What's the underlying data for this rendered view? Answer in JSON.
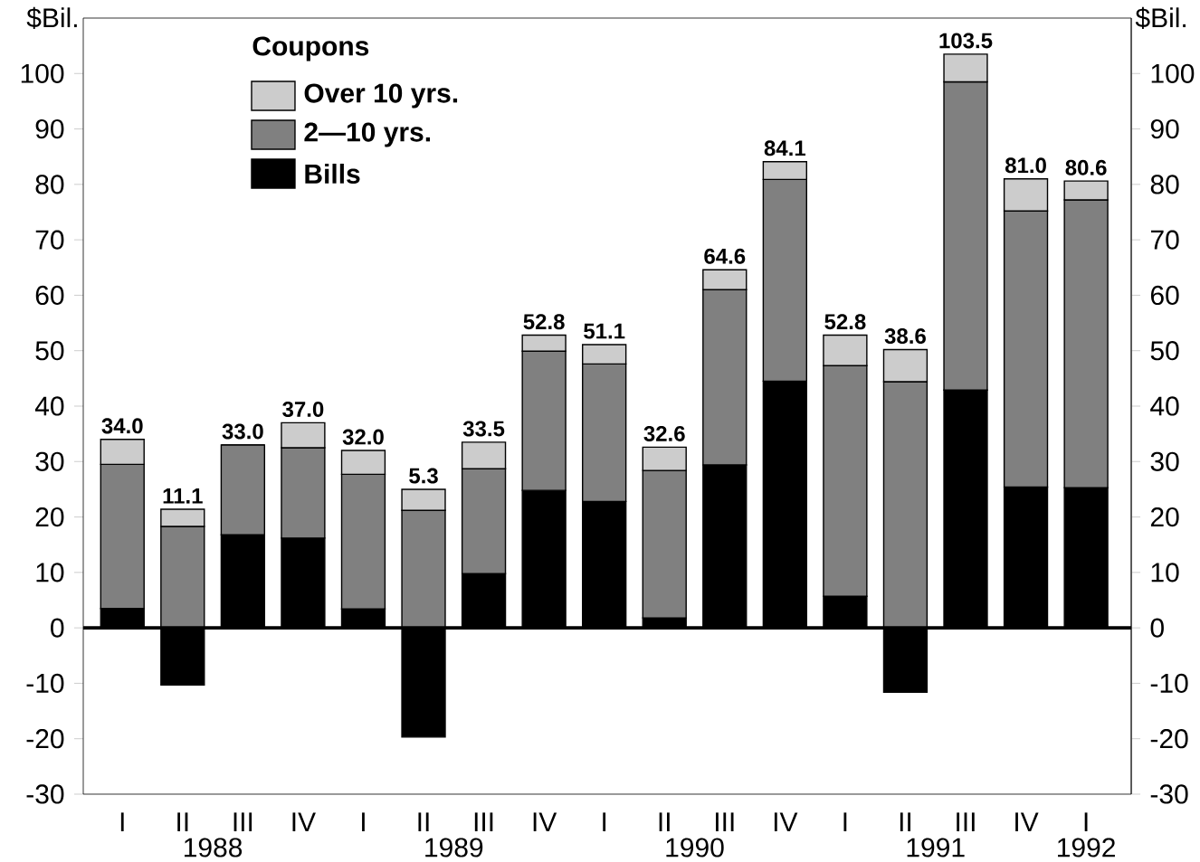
{
  "chart_data": {
    "type": "bar",
    "stacked": true,
    "ylabel": "$Bil.",
    "y2label": "$Bil.",
    "legend_title": "Coupons",
    "legend": "top left",
    "categories": [
      "I",
      "II",
      "III",
      "IV",
      "I",
      "II",
      "III",
      "IV",
      "I",
      "II",
      "III",
      "IV",
      "I",
      "II",
      "III",
      "IV",
      "I"
    ],
    "series": [
      {
        "name": "Bills",
        "color": "#000000",
        "values": [
          3.5,
          -10.3,
          16.8,
          16.2,
          3.4,
          -19.7,
          9.8,
          24.8,
          22.8,
          1.8,
          29.4,
          44.5,
          5.7,
          -11.6,
          42.9,
          25.4,
          25.3
        ]
      },
      {
        "name": "2—10 yrs.",
        "color": "#808080",
        "values": [
          26.0,
          18.3,
          16.2,
          16.3,
          24.3,
          21.2,
          18.9,
          25.1,
          24.8,
          26.6,
          31.6,
          36.4,
          41.6,
          44.4,
          55.6,
          49.8,
          51.9
        ]
      },
      {
        "name": "Over 10 yrs.",
        "color": "#cccccc",
        "values": [
          4.5,
          3.1,
          0,
          4.5,
          4.3,
          3.8,
          4.8,
          2.9,
          3.5,
          4.2,
          3.6,
          3.2,
          5.5,
          5.8,
          5.0,
          5.8,
          3.4
        ]
      }
    ],
    "totals": [
      "34.0",
      "11.1",
      "33.0",
      "37.0",
      "32.0",
      "5.3",
      "33.5",
      "52.8",
      "51.1",
      "32.6",
      "64.6",
      "84.1",
      "52.8",
      "38.6",
      "103.5",
      "81.0",
      "80.6"
    ],
    "annotations": [
      "1988",
      "1989",
      "1990",
      "1991",
      "1992"
    ],
    "ylim": [
      -30,
      110
    ],
    "yticks": [
      -30,
      -20,
      -10,
      0,
      10,
      20,
      30,
      40,
      50,
      60,
      70,
      80,
      90,
      100
    ],
    "y2lim": [
      -30,
      110
    ],
    "y2ticks": [
      -30,
      -20,
      -10,
      0,
      10,
      20,
      30,
      40,
      50,
      60,
      70,
      80,
      90,
      100
    ]
  }
}
